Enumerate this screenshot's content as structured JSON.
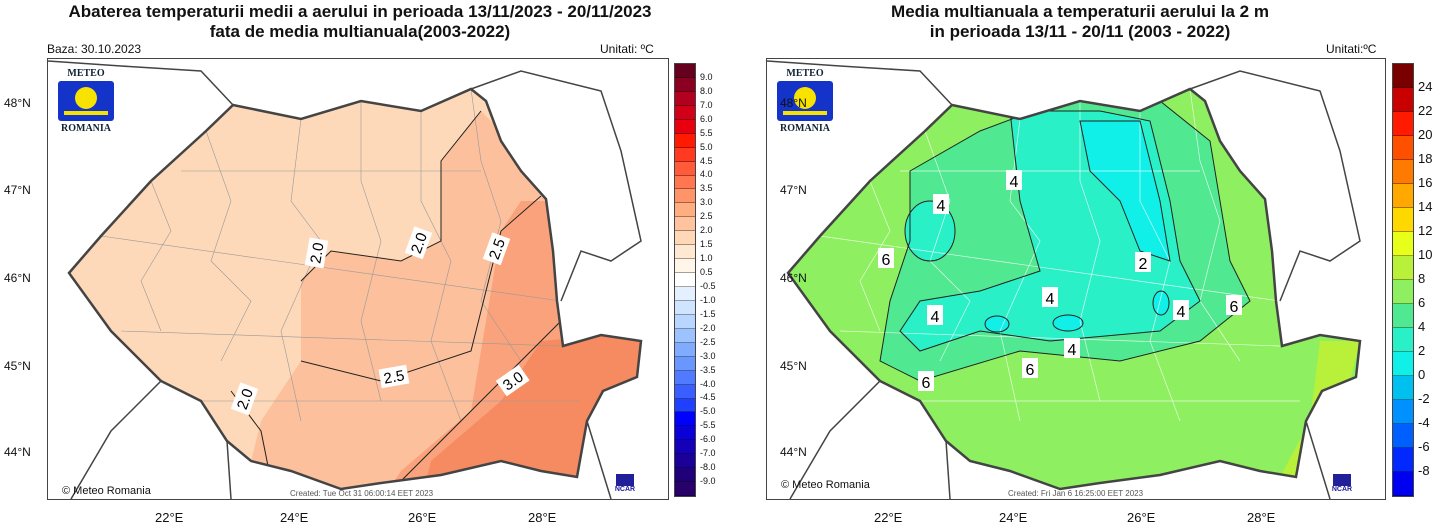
{
  "left": {
    "title_line1": "Abaterea temperaturii medii a aerului in perioada 13/11/2023 - 20/11/2023",
    "title_line2": "fata de media multianuala(2003-2022)",
    "base": "Baza: 30.10.2023",
    "units": "Unitati: ºC",
    "created": "Created: Tue Oct 31 06:00:14 EET 2023",
    "copyright": "© Meteo Romania",
    "colorbar_labels": [
      "9.0",
      "8.0",
      "7.0",
      "6.0",
      "5.5",
      "5.0",
      "4.5",
      "4.0",
      "3.5",
      "3.0",
      "2.5",
      "2.0",
      "1.5",
      "1.0",
      "0.5",
      "-0.5",
      "-1.0",
      "-1.5",
      "-2.0",
      "-2.5",
      "-3.0",
      "-3.5",
      "-4.0",
      "-4.5",
      "-5.0",
      "-5.5",
      "-6.0",
      "-7.0",
      "-8.0",
      "-9.0"
    ],
    "colorbar_colors": [
      "#67001f",
      "#8b0020",
      "#b2001e",
      "#d10018",
      "#e8000e",
      "#ff1a00",
      "#ff3a20",
      "#ff5a3a",
      "#ff7650",
      "#ff9468",
      "#ffae82",
      "#ffc49e",
      "#ffd8b8",
      "#ffe8d2",
      "#fff5e8",
      "#ffffff",
      "#e4f0ff",
      "#cfe4ff",
      "#b8d6ff",
      "#9cc3ff",
      "#80acff",
      "#6a96ff",
      "#507aff",
      "#3a5eff",
      "#2040ff",
      "#0000ff",
      "#0a00d8",
      "#1400b8",
      "#1a0098",
      "#200078",
      "#28006a"
    ],
    "contour_labels": [
      "2.0",
      "2.0",
      "2.5",
      "2.5",
      "3.0",
      "2.0"
    ]
  },
  "right": {
    "title_line1": "Media multianuala a temperaturii aerului la 2 m",
    "title_line2": "in perioada 13/11 - 20/11 (2003 - 2022)",
    "units": "Unitati:ºC",
    "created": "Created: Fri Jan  6 16:25:00 EET 2023",
    "copyright": "© Meteo Romania",
    "colorbar_labels": [
      "24",
      "22",
      "20",
      "18",
      "16",
      "14",
      "12",
      "10",
      "8",
      "6",
      "4",
      "2",
      "0",
      "-2",
      "-4",
      "-6",
      "-8"
    ],
    "colorbar_colors": [
      "#7a0000",
      "#c80000",
      "#ff1a00",
      "#ff5000",
      "#ff7a00",
      "#ffa800",
      "#ffd800",
      "#e8ff1a",
      "#b8f03a",
      "#8ef060",
      "#50e890",
      "#2af0c8",
      "#10f0e8",
      "#00c0f0",
      "#0090ff",
      "#0060ff",
      "#0028ff",
      "#0000f0"
    ],
    "contour_labels": [
      "4",
      "4",
      "6",
      "2",
      "4",
      "4",
      "4",
      "4",
      "6",
      "4",
      "6",
      "6"
    ]
  },
  "logo": {
    "top": "METEO",
    "bottom": "ROMANIA",
    "ncar": "NCAR"
  },
  "lat_labels": [
    "48°N",
    "47°N",
    "46°N",
    "45°N",
    "44°N"
  ],
  "lon_labels": [
    "22°E",
    "24°E",
    "26°E",
    "28°E"
  ]
}
